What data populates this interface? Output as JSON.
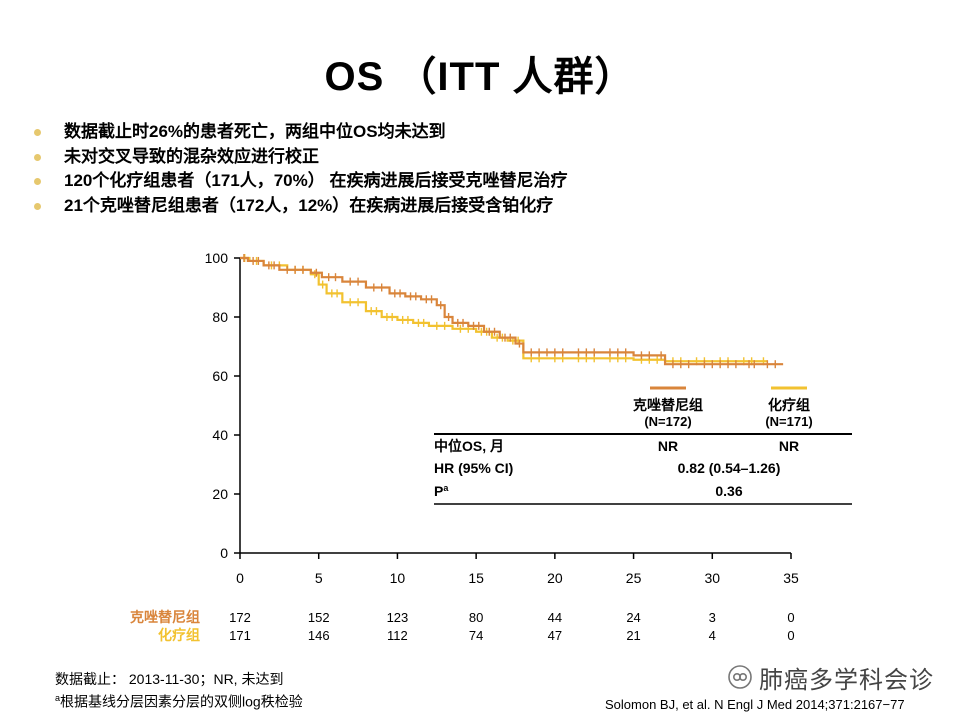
{
  "page": {
    "title": "OS （ITT 人群）",
    "bullets": [
      "数据截止时26%的患者死亡，两组中位OS均未达到",
      "未对交叉导致的混杂效应进行校正",
      "120个化疗组患者（171人，70%） 在疾病进展后接受克唑替尼治疗",
      "21个克唑替尼组患者（172人，12%）在疾病进展后接受含铂化疗"
    ],
    "bullet_color": "#E6C86E"
  },
  "chart_data": {
    "type": "line",
    "subtype": "kaplan-meier step curve with censor marks",
    "xlabel": "",
    "ylabel": "",
    "xlim": [
      0,
      35
    ],
    "ylim": [
      0,
      100
    ],
    "xticks": [
      0,
      5,
      10,
      15,
      20,
      25,
      30,
      35
    ],
    "yticks": [
      0,
      20,
      40,
      60,
      80,
      100
    ],
    "grid": false,
    "series": [
      {
        "name": "克唑替尼组",
        "n_label": "(N=172)",
        "color": "#D9853B",
        "points": [
          [
            0,
            100
          ],
          [
            0.5,
            99
          ],
          [
            1.5,
            97.5
          ],
          [
            2.5,
            96
          ],
          [
            4.5,
            95
          ],
          [
            5.2,
            93.5
          ],
          [
            6.5,
            92
          ],
          [
            8,
            90
          ],
          [
            9.5,
            88
          ],
          [
            10.5,
            87
          ],
          [
            11.5,
            86
          ],
          [
            12.5,
            84
          ],
          [
            13,
            80
          ],
          [
            13.5,
            78
          ],
          [
            14.5,
            77
          ],
          [
            15.5,
            75
          ],
          [
            16.5,
            73
          ],
          [
            17.5,
            71
          ],
          [
            18,
            68
          ],
          [
            21,
            68
          ],
          [
            23,
            68
          ],
          [
            25,
            67
          ],
          [
            26.5,
            67
          ],
          [
            27,
            64
          ],
          [
            29,
            64
          ],
          [
            32,
            64
          ],
          [
            33,
            64
          ],
          [
            34.5,
            64
          ]
        ]
      },
      {
        "name": "化疗组",
        "n_label": "(N=171)",
        "color": "#F2C230",
        "points": [
          [
            0,
            100
          ],
          [
            0.6,
            99
          ],
          [
            1.5,
            97.5
          ],
          [
            3,
            96
          ],
          [
            4.5,
            94.5
          ],
          [
            5,
            91
          ],
          [
            5.5,
            88
          ],
          [
            6.5,
            85
          ],
          [
            8,
            82
          ],
          [
            9,
            80
          ],
          [
            10,
            79
          ],
          [
            11,
            78
          ],
          [
            12,
            77
          ],
          [
            13.5,
            76
          ],
          [
            15,
            75
          ],
          [
            16,
            73
          ],
          [
            17,
            72
          ],
          [
            18,
            66
          ],
          [
            19.5,
            66
          ],
          [
            21,
            66
          ],
          [
            23,
            66
          ],
          [
            25,
            65.5
          ],
          [
            27,
            65
          ],
          [
            28.5,
            65
          ],
          [
            30,
            65
          ],
          [
            31.5,
            65
          ],
          [
            33,
            65
          ],
          [
            33.5,
            65
          ]
        ]
      }
    ],
    "table": {
      "header": [
        "",
        "克唑替尼组\n(N=172)",
        "化疗组\n(N=171)"
      ],
      "rows": [
        {
          "label": "中位OS, 月",
          "values": [
            "NR",
            "NR"
          ]
        },
        {
          "label": "HR (95% CI)",
          "value": "0.82 (0.54–1.26)"
        },
        {
          "label": "P",
          "sup": "a",
          "value": "0.36"
        }
      ]
    },
    "at_risk": {
      "times": [
        0,
        5,
        10,
        15,
        20,
        25,
        30,
        35
      ],
      "rows": [
        {
          "label": "克唑替尼组",
          "color": "#D9853B",
          "values": [
            172,
            152,
            123,
            80,
            44,
            24,
            3,
            0
          ]
        },
        {
          "label": "化疗组",
          "color": "#F2C230",
          "values": [
            171,
            146,
            112,
            74,
            47,
            21,
            4,
            0
          ]
        }
      ]
    }
  },
  "footnote": {
    "line1": "数据截止： 2013-11-30；NR, 未达到",
    "line2_sup": "a",
    "line2": "根据基线分层因素分层的双侧log秩检验"
  },
  "citation": "Solomon  BJ, et al. N Engl J Med 2014;371:2167−77",
  "brand": {
    "name": "肺癌多学科会诊",
    "icon": "wechat-official-account-icon"
  }
}
